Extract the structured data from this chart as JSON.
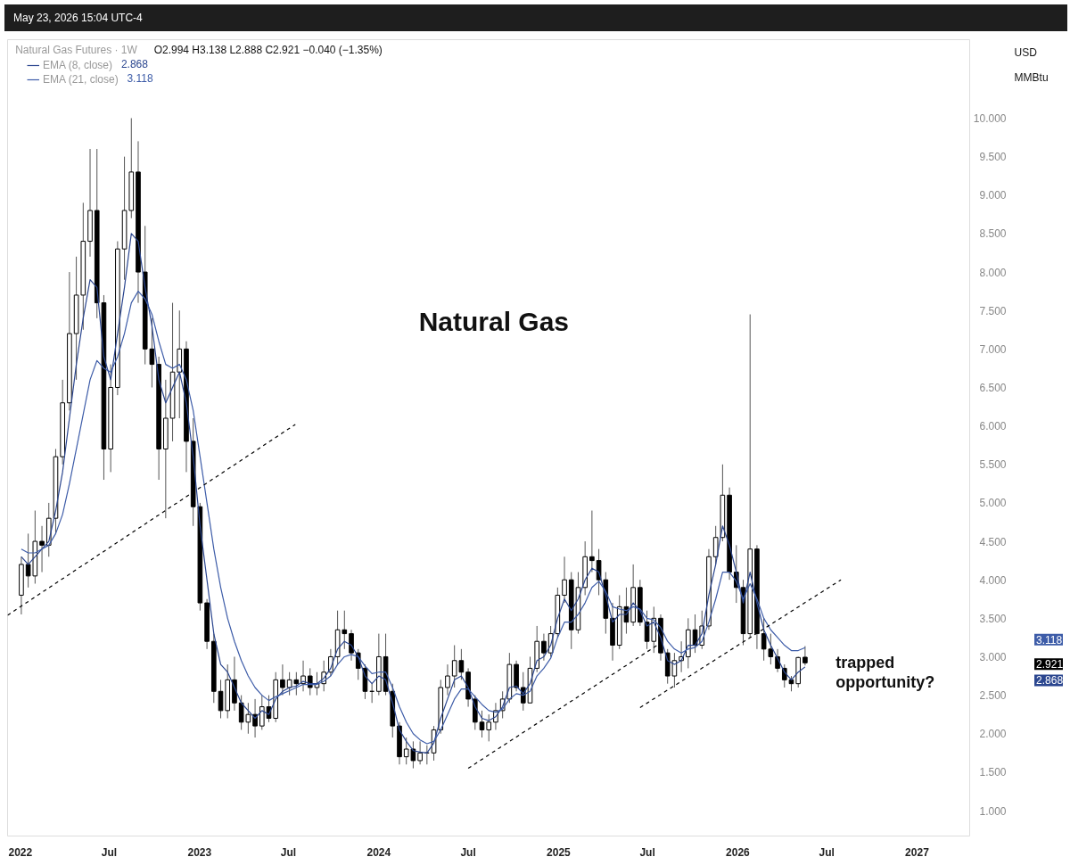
{
  "chart_data": {
    "type": "candlestick",
    "title": "Natural Gas",
    "subtitle": "Natural Gas Futures · 1W",
    "ylabel": "USD\nMMBtu",
    "legend": "top left",
    "annotations": [
      "May 23, 2026 15:04 UTC-4",
      "O2.994 H3.138 L2.888 C2.921 −0.040 (−1.35%)",
      "trapped\nopportunity?",
      "2.868",
      "3.118",
      "3.118",
      "2.921",
      "2.868"
    ],
    "xlim": [
      "2021-12-06",
      "2027-04-20"
    ],
    "xticks": [
      {
        "value": "2022-01-01",
        "label": "2022"
      },
      {
        "value": "2022-07-01",
        "label": "Jul"
      },
      {
        "value": "2023-01-01",
        "label": "2023"
      },
      {
        "value": "2023-07-01",
        "label": "Jul"
      },
      {
        "value": "2024-01-01",
        "label": "2024"
      },
      {
        "value": "2024-07-01",
        "label": "Jul"
      },
      {
        "value": "2025-01-01",
        "label": "2025"
      },
      {
        "value": "2025-07-01",
        "label": "Jul"
      },
      {
        "value": "2026-01-01",
        "label": "2026"
      },
      {
        "value": "2026-07-01",
        "label": "Jul"
      },
      {
        "value": "2027-01-01",
        "label": "2027"
      }
    ],
    "ylim": [
      0.67,
      11.02
    ],
    "yticks": [
      {
        "value": 1,
        "label": "1.000"
      },
      {
        "value": 1.5,
        "label": "1.500"
      },
      {
        "value": 2,
        "label": "2.000"
      },
      {
        "value": 2.5,
        "label": "2.500"
      },
      {
        "value": 3,
        "label": "3.000"
      },
      {
        "value": 3.5,
        "label": "3.500"
      },
      {
        "value": 4,
        "label": "4.000"
      },
      {
        "value": 4.5,
        "label": "4.500"
      },
      {
        "value": 5,
        "label": "5.000"
      },
      {
        "value": 5.5,
        "label": "5.500"
      },
      {
        "value": 6,
        "label": "6.000"
      },
      {
        "value": 6.5,
        "label": "6.500"
      },
      {
        "value": 7,
        "label": "7.000"
      },
      {
        "value": 7.5,
        "label": "7.500"
      },
      {
        "value": 8,
        "label": "8.000"
      },
      {
        "value": 8.5,
        "label": "8.500"
      },
      {
        "value": 9,
        "label": "9.000"
      },
      {
        "value": 9.5,
        "label": "9.500"
      },
      {
        "value": 10,
        "label": "10.000"
      }
    ],
    "x": [
      "2022-01-03",
      "2022-01-17",
      "2022-01-31",
      "2022-02-14",
      "2022-02-28",
      "2022-03-14",
      "2022-03-28",
      "2022-04-11",
      "2022-04-25",
      "2022-05-09",
      "2022-05-23",
      "2022-06-06",
      "2022-06-20",
      "2022-07-04",
      "2022-07-18",
      "2022-08-01",
      "2022-08-15",
      "2022-08-29",
      "2022-09-12",
      "2022-09-26",
      "2022-10-10",
      "2022-10-24",
      "2022-11-07",
      "2022-11-21",
      "2022-12-05",
      "2022-12-19",
      "2023-01-02",
      "2023-01-16",
      "2023-01-30",
      "2023-02-13",
      "2023-02-27",
      "2023-03-13",
      "2023-03-27",
      "2023-04-10",
      "2023-04-24",
      "2023-05-08",
      "2023-05-22",
      "2023-06-05",
      "2023-06-19",
      "2023-07-03",
      "2023-07-17",
      "2023-07-31",
      "2023-08-14",
      "2023-08-28",
      "2023-09-11",
      "2023-09-25",
      "2023-10-09",
      "2023-10-23",
      "2023-11-06",
      "2023-11-20",
      "2023-12-04",
      "2023-12-18",
      "2024-01-01",
      "2024-01-15",
      "2024-01-29",
      "2024-02-12",
      "2024-02-26",
      "2024-03-11",
      "2024-03-25",
      "2024-04-08",
      "2024-04-22",
      "2024-05-06",
      "2024-05-20",
      "2024-06-03",
      "2024-06-17",
      "2024-07-01",
      "2024-07-15",
      "2024-07-29",
      "2024-08-12",
      "2024-08-26",
      "2024-09-09",
      "2024-09-23",
      "2024-10-07",
      "2024-10-21",
      "2024-11-04",
      "2024-11-18",
      "2024-12-02",
      "2024-12-16",
      "2024-12-30",
      "2025-01-13",
      "2025-01-27",
      "2025-02-10",
      "2025-02-24",
      "2025-03-10",
      "2025-03-24",
      "2025-04-07",
      "2025-04-21",
      "2025-05-05",
      "2025-05-19",
      "2025-06-02",
      "2025-06-16",
      "2025-06-30",
      "2025-07-14",
      "2025-07-28",
      "2025-08-11",
      "2025-08-25",
      "2025-09-08",
      "2025-09-22",
      "2025-10-06",
      "2025-10-20",
      "2025-11-03",
      "2025-11-17",
      "2025-12-01",
      "2025-12-15",
      "2025-12-29",
      "2026-01-12",
      "2026-01-26",
      "2026-02-09",
      "2026-02-23",
      "2026-03-09",
      "2026-03-23",
      "2026-04-06",
      "2026-04-20",
      "2026-05-04",
      "2026-05-18"
    ],
    "ohlc": [
      [
        3.8,
        4.3,
        3.55,
        4.2
      ],
      [
        4.2,
        4.6,
        3.9,
        4.05
      ],
      [
        4.05,
        4.9,
        3.95,
        4.5
      ],
      [
        4.5,
        4.7,
        4.1,
        4.45
      ],
      [
        4.45,
        5.0,
        4.3,
        4.8
      ],
      [
        4.8,
        5.7,
        4.6,
        5.6
      ],
      [
        5.6,
        6.6,
        5.5,
        6.3
      ],
      [
        6.3,
        8.0,
        6.2,
        7.2
      ],
      [
        7.2,
        8.2,
        6.6,
        7.7
      ],
      [
        7.7,
        8.9,
        7.25,
        8.4
      ],
      [
        8.4,
        9.6,
        8.2,
        8.8
      ],
      [
        8.8,
        9.6,
        7.4,
        7.6
      ],
      [
        7.6,
        7.7,
        5.3,
        5.7
      ],
      [
        5.7,
        6.8,
        5.4,
        6.5
      ],
      [
        6.5,
        8.4,
        6.4,
        8.3
      ],
      [
        8.3,
        9.5,
        7.9,
        8.8
      ],
      [
        8.8,
        10.0,
        8.7,
        9.3
      ],
      [
        9.3,
        9.7,
        7.6,
        8.0
      ],
      [
        8.0,
        8.6,
        6.8,
        7.0
      ],
      [
        7.0,
        7.4,
        6.5,
        6.8
      ],
      [
        6.8,
        6.9,
        5.3,
        5.7
      ],
      [
        5.7,
        6.6,
        4.8,
        6.1
      ],
      [
        6.1,
        7.6,
        5.8,
        6.7
      ],
      [
        6.7,
        7.5,
        6.1,
        7.0
      ],
      [
        7.0,
        7.1,
        5.4,
        5.8
      ],
      [
        5.8,
        6.1,
        4.7,
        4.95
      ],
      [
        4.95,
        5.0,
        3.6,
        3.7
      ],
      [
        3.7,
        3.75,
        3.1,
        3.2
      ],
      [
        3.2,
        3.3,
        2.4,
        2.55
      ],
      [
        2.55,
        2.7,
        2.2,
        2.3
      ],
      [
        2.3,
        2.9,
        2.2,
        2.7
      ],
      [
        2.7,
        3.0,
        2.3,
        2.4
      ],
      [
        2.4,
        2.5,
        2.05,
        2.15
      ],
      [
        2.15,
        2.4,
        2.0,
        2.25
      ],
      [
        2.25,
        2.45,
        1.95,
        2.1
      ],
      [
        2.1,
        2.5,
        2.05,
        2.35
      ],
      [
        2.35,
        2.5,
        2.15,
        2.2
      ],
      [
        2.2,
        2.8,
        2.15,
        2.7
      ],
      [
        2.7,
        2.9,
        2.5,
        2.6
      ],
      [
        2.6,
        2.8,
        2.5,
        2.7
      ],
      [
        2.7,
        2.8,
        2.5,
        2.65
      ],
      [
        2.65,
        2.95,
        2.55,
        2.75
      ],
      [
        2.75,
        2.85,
        2.5,
        2.6
      ],
      [
        2.6,
        2.8,
        2.5,
        2.65
      ],
      [
        2.65,
        2.95,
        2.55,
        2.8
      ],
      [
        2.8,
        3.1,
        2.75,
        3.0
      ],
      [
        3.0,
        3.6,
        2.9,
        3.35
      ],
      [
        3.35,
        3.6,
        3.1,
        3.3
      ],
      [
        3.3,
        3.35,
        2.95,
        3.05
      ],
      [
        3.05,
        3.1,
        2.7,
        2.85
      ],
      [
        2.85,
        2.9,
        2.45,
        2.55
      ],
      [
        2.55,
        2.65,
        2.4,
        2.55
      ],
      [
        2.55,
        3.3,
        2.5,
        3.0
      ],
      [
        3.0,
        3.3,
        2.5,
        2.55
      ],
      [
        2.55,
        2.65,
        1.95,
        2.1
      ],
      [
        2.1,
        2.15,
        1.6,
        1.7
      ],
      [
        1.7,
        1.95,
        1.6,
        1.8
      ],
      [
        1.8,
        1.9,
        1.55,
        1.65
      ],
      [
        1.65,
        1.9,
        1.6,
        1.75
      ],
      [
        1.75,
        1.85,
        1.6,
        1.75
      ],
      [
        1.75,
        2.1,
        1.65,
        2.05
      ],
      [
        2.05,
        2.7,
        2.0,
        2.6
      ],
      [
        2.6,
        2.9,
        2.5,
        2.75
      ],
      [
        2.75,
        3.15,
        2.6,
        2.95
      ],
      [
        2.95,
        3.1,
        2.7,
        2.8
      ],
      [
        2.8,
        2.85,
        2.35,
        2.45
      ],
      [
        2.45,
        2.5,
        2.05,
        2.15
      ],
      [
        2.15,
        2.3,
        1.95,
        2.05
      ],
      [
        2.05,
        2.25,
        1.9,
        2.15
      ],
      [
        2.15,
        2.4,
        2.05,
        2.3
      ],
      [
        2.3,
        2.55,
        2.2,
        2.45
      ],
      [
        2.45,
        3.05,
        2.4,
        2.9
      ],
      [
        2.9,
        2.95,
        2.55,
        2.6
      ],
      [
        2.6,
        2.8,
        2.3,
        2.4
      ],
      [
        2.4,
        3.0,
        2.4,
        2.85
      ],
      [
        2.85,
        3.4,
        2.8,
        3.2
      ],
      [
        3.2,
        3.3,
        2.95,
        3.05
      ],
      [
        3.05,
        3.4,
        3.0,
        3.3
      ],
      [
        3.3,
        3.9,
        3.25,
        3.8
      ],
      [
        3.8,
        4.3,
        3.7,
        4.0
      ],
      [
        4.0,
        4.1,
        3.1,
        3.35
      ],
      [
        3.35,
        4.1,
        3.3,
        3.9
      ],
      [
        3.9,
        4.5,
        3.8,
        4.3
      ],
      [
        4.3,
        4.9,
        4.1,
        4.25
      ],
      [
        4.25,
        4.4,
        3.8,
        4.0
      ],
      [
        4.0,
        4.1,
        3.3,
        3.5
      ],
      [
        3.5,
        3.7,
        2.95,
        3.15
      ],
      [
        3.15,
        3.8,
        3.1,
        3.65
      ],
      [
        3.65,
        3.9,
        3.3,
        3.45
      ],
      [
        3.45,
        4.2,
        3.4,
        3.9
      ],
      [
        3.9,
        4.0,
        3.4,
        3.45
      ],
      [
        3.45,
        3.6,
        3.1,
        3.2
      ],
      [
        3.2,
        3.65,
        3.05,
        3.5
      ],
      [
        3.5,
        3.55,
        2.95,
        3.05
      ],
      [
        3.05,
        3.1,
        2.65,
        2.75
      ],
      [
        2.75,
        3.05,
        2.6,
        2.95
      ],
      [
        2.95,
        3.2,
        2.8,
        3.0
      ],
      [
        3.0,
        3.5,
        2.85,
        3.35
      ],
      [
        3.35,
        3.55,
        3.05,
        3.15
      ],
      [
        3.15,
        3.6,
        3.1,
        3.4
      ],
      [
        3.4,
        4.4,
        3.35,
        4.3
      ],
      [
        4.3,
        4.7,
        4.2,
        4.55
      ],
      [
        4.55,
        5.5,
        4.5,
        5.1
      ],
      [
        5.1,
        5.2,
        4.0,
        4.1
      ],
      [
        4.1,
        4.45,
        3.7,
        3.9
      ],
      [
        3.9,
        4.0,
        3.15,
        3.3
      ],
      [
        3.3,
        7.45,
        3.25,
        4.4
      ],
      [
        4.4,
        4.45,
        3.1,
        3.3
      ],
      [
        3.3,
        3.5,
        2.95,
        3.1
      ],
      [
        3.1,
        3.3,
        2.9,
        3.0
      ],
      [
        3.0,
        3.1,
        2.8,
        2.85
      ],
      [
        2.85,
        2.9,
        2.6,
        2.7
      ],
      [
        2.7,
        2.75,
        2.55,
        2.65
      ],
      [
        2.65,
        3.0,
        2.6,
        2.99
      ],
      [
        2.994,
        3.138,
        2.888,
        2.921
      ]
    ],
    "series": [
      {
        "name": "EMA (8, close)",
        "type": "line",
        "color": "#2b468f",
        "values": [
          4.3,
          4.2,
          4.3,
          4.4,
          4.5,
          4.9,
          5.4,
          6.1,
          6.8,
          7.4,
          7.9,
          7.8,
          6.9,
          6.6,
          7.2,
          7.8,
          8.5,
          8.4,
          7.8,
          7.3,
          6.6,
          6.3,
          6.5,
          6.7,
          6.3,
          5.6,
          4.7,
          4.0,
          3.3,
          2.9,
          2.8,
          2.6,
          2.4,
          2.3,
          2.2,
          2.3,
          2.25,
          2.45,
          2.55,
          2.6,
          2.62,
          2.68,
          2.65,
          2.65,
          2.72,
          2.85,
          3.1,
          3.2,
          3.15,
          3.0,
          2.75,
          2.65,
          2.75,
          2.7,
          2.4,
          2.05,
          1.9,
          1.78,
          1.76,
          1.75,
          1.88,
          2.2,
          2.45,
          2.7,
          2.75,
          2.6,
          2.35,
          2.2,
          2.17,
          2.22,
          2.35,
          2.6,
          2.62,
          2.52,
          2.65,
          2.95,
          3.0,
          3.15,
          3.5,
          3.75,
          3.6,
          3.75,
          4.0,
          4.15,
          4.1,
          3.8,
          3.45,
          3.55,
          3.55,
          3.7,
          3.6,
          3.4,
          3.45,
          3.25,
          2.95,
          2.9,
          2.95,
          3.15,
          3.15,
          3.3,
          3.8,
          4.2,
          4.7,
          4.45,
          4.1,
          3.7,
          4.1,
          3.7,
          3.35,
          3.15,
          2.98,
          2.8,
          2.7,
          2.8,
          2.868
        ]
      },
      {
        "name": "EMA (21, close)",
        "type": "line",
        "color": "#3d5ca8",
        "values": [
          4.4,
          4.35,
          4.35,
          4.4,
          4.45,
          4.6,
          4.85,
          5.25,
          5.7,
          6.15,
          6.6,
          6.85,
          6.75,
          6.7,
          6.9,
          7.2,
          7.6,
          7.75,
          7.65,
          7.45,
          7.1,
          6.8,
          6.75,
          6.8,
          6.6,
          6.2,
          5.6,
          5.0,
          4.4,
          3.9,
          3.5,
          3.2,
          2.95,
          2.75,
          2.6,
          2.5,
          2.43,
          2.48,
          2.52,
          2.56,
          2.6,
          2.64,
          2.64,
          2.64,
          2.68,
          2.75,
          2.9,
          3.0,
          3.03,
          3.0,
          2.88,
          2.78,
          2.8,
          2.8,
          2.6,
          2.35,
          2.15,
          2.0,
          1.92,
          1.87,
          1.9,
          2.05,
          2.25,
          2.45,
          2.58,
          2.58,
          2.48,
          2.38,
          2.3,
          2.28,
          2.32,
          2.45,
          2.52,
          2.5,
          2.55,
          2.75,
          2.85,
          2.98,
          3.25,
          3.45,
          3.45,
          3.55,
          3.7,
          3.9,
          3.98,
          3.85,
          3.65,
          3.62,
          3.6,
          3.65,
          3.62,
          3.5,
          3.48,
          3.38,
          3.2,
          3.1,
          3.05,
          3.1,
          3.12,
          3.2,
          3.45,
          3.75,
          4.1,
          4.1,
          3.98,
          3.75,
          3.95,
          3.75,
          3.5,
          3.35,
          3.25,
          3.15,
          3.08,
          3.08,
          3.118
        ]
      },
      {
        "type": "line",
        "color": "#000000",
        "line_style": "dashed",
        "x": [
          "2021-12-06",
          "2023-07-15"
        ],
        "values": [
          3.54,
          6.02
        ]
      },
      {
        "type": "line",
        "color": "#000000",
        "line_style": "dashed",
        "x": [
          "2024-07-01",
          "2025-07-21"
        ],
        "values": [
          1.55,
          3.15
        ]
      },
      {
        "type": "line",
        "color": "#000000",
        "line_style": "dashed",
        "x": [
          "2025-06-16",
          "2026-07-30"
        ],
        "values": [
          2.34,
          4.0
        ]
      }
    ]
  }
}
